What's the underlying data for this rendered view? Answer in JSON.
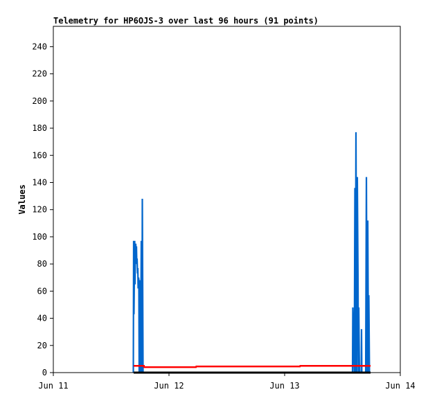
{
  "chart_data": {
    "type": "line",
    "title": "Telemetry for HP6OJS-3 over last 96 hours (91 points)",
    "xlabel": "",
    "ylabel": "Values",
    "xlim": [
      "Jun 11 00:00",
      "Jun 14 00:00"
    ],
    "ylim": [
      0,
      255
    ],
    "x_ticks": [
      "Jun 11",
      "Jun 12",
      "Jun 13",
      "Jun 14"
    ],
    "y_ticks": [
      0,
      20,
      40,
      60,
      80,
      100,
      120,
      140,
      160,
      180,
      200,
      220,
      240
    ],
    "grid": false,
    "legend": "none",
    "series": [
      {
        "color": "#0066cc",
        "points": [
          [
            "Jun 11 16:36",
            0
          ],
          [
            "Jun 11 16:40",
            97
          ],
          [
            "Jun 11 16:44",
            43
          ],
          [
            "Jun 11 16:53",
            97
          ],
          [
            "Jun 11 16:57",
            65
          ],
          [
            "Jun 11 17:02",
            86
          ],
          [
            "Jun 11 17:06",
            95
          ],
          [
            "Jun 11 17:10",
            88
          ],
          [
            "Jun 11 17:15",
            93
          ],
          [
            "Jun 11 17:19",
            80
          ],
          [
            "Jun 11 17:23",
            84
          ],
          [
            "Jun 11 17:28",
            73
          ],
          [
            "Jun 11 17:32",
            77
          ],
          [
            "Jun 11 17:36",
            62
          ],
          [
            "Jun 11 17:41",
            70
          ],
          [
            "Jun 11 17:45",
            68
          ],
          [
            "Jun 11 17:49",
            0
          ],
          [
            "Jun 11 17:58",
            68
          ],
          [
            "Jun 11 18:06",
            0
          ],
          [
            "Jun 11 18:15",
            97
          ],
          [
            "Jun 11 18:24",
            0
          ],
          [
            "Jun 11 18:28",
            128
          ],
          [
            "Jun 11 18:37",
            0
          ],
          [
            "Jun 11 18:50",
            0
          ],
          [
            "Jun 13 14:05",
            0
          ],
          [
            "Jun 13 14:09",
            48
          ],
          [
            "Jun 13 14:18",
            24
          ],
          [
            "Jun 13 14:27",
            0
          ],
          [
            "Jun 13 14:35",
            136
          ],
          [
            "Jun 13 14:40",
            0
          ],
          [
            "Jun 13 14:48",
            177
          ],
          [
            "Jun 13 14:57",
            0
          ],
          [
            "Jun 13 15:05",
            144
          ],
          [
            "Jun 13 15:14",
            64
          ],
          [
            "Jun 13 15:18",
            0
          ],
          [
            "Jun 13 15:23",
            48
          ],
          [
            "Jun 13 15:31",
            0
          ],
          [
            "Jun 13 15:53",
            0
          ],
          [
            "Jun 13 15:57",
            32
          ],
          [
            "Jun 13 16:01",
            0
          ],
          [
            "Jun 13 16:49",
            0
          ],
          [
            "Jun 13 16:58",
            144
          ],
          [
            "Jun 13 17:06",
            0
          ],
          [
            "Jun 13 17:15",
            112
          ],
          [
            "Jun 13 17:24",
            0
          ],
          [
            "Jun 13 17:28",
            57
          ],
          [
            "Jun 13 17:36",
            0
          ]
        ]
      },
      {
        "color": "#ff0000",
        "points": [
          [
            "Jun 11 16:40",
            5
          ],
          [
            "Jun 11 18:48",
            5
          ],
          [
            "Jun 11 18:50",
            4
          ],
          [
            "Jun 12 05:36",
            4
          ],
          [
            "Jun 12 05:40",
            4.5
          ],
          [
            "Jun 13 03:10",
            4.5
          ],
          [
            "Jun 13 03:14",
            5
          ],
          [
            "Jun 13 17:50",
            5
          ]
        ]
      },
      {
        "color": "#000000",
        "points": [
          [
            "Jun 11 16:40",
            0
          ],
          [
            "Jun 13 17:50",
            0
          ]
        ]
      }
    ]
  }
}
